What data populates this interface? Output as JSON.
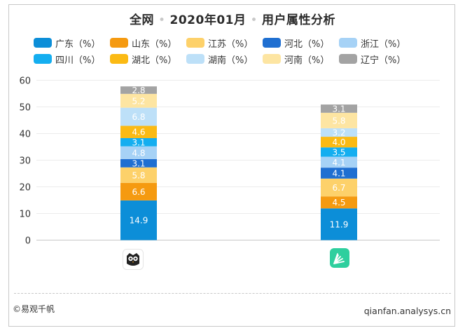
{
  "title": {
    "scope": "全网",
    "period": "2020年01月",
    "topic": "用户属性分析",
    "separator": "•"
  },
  "legend": [
    {
      "label": "广东（%）",
      "color": "#0c8ed8"
    },
    {
      "label": "山东（%）",
      "color": "#f59a10"
    },
    {
      "label": "江苏（%）",
      "color": "#fdd16a"
    },
    {
      "label": "河北（%）",
      "color": "#1f6fd1"
    },
    {
      "label": "浙江（%）",
      "color": "#a6d2f6"
    },
    {
      "label": "四川（%）",
      "color": "#14aef0"
    },
    {
      "label": "湖北（%）",
      "color": "#fbba14"
    },
    {
      "label": "湖南（%）",
      "color": "#bde0f8"
    },
    {
      "label": "河南（%）",
      "color": "#fde5a2"
    },
    {
      "label": "辽宁（%）",
      "color": "#a3a3a3"
    }
  ],
  "chart_data": {
    "type": "bar",
    "stacked": true,
    "categories": [
      "app-owl",
      "app-qianfan"
    ],
    "ylim": [
      0,
      60
    ],
    "yticks": [
      0,
      10,
      20,
      30,
      40,
      50,
      60
    ],
    "grid": true,
    "series": [
      {
        "name": "广东（%）",
        "color": "#0c8ed8",
        "values": [
          14.9,
          11.9
        ]
      },
      {
        "name": "山东（%）",
        "color": "#f59a10",
        "values": [
          6.6,
          4.5
        ]
      },
      {
        "name": "江苏（%）",
        "color": "#fdd16a",
        "values": [
          5.8,
          6.7
        ]
      },
      {
        "name": "河北（%）",
        "color": "#1f6fd1",
        "values": [
          3.1,
          4.1
        ]
      },
      {
        "name": "浙江（%）",
        "color": "#a6d2f6",
        "values": [
          4.8,
          4.1
        ]
      },
      {
        "name": "四川（%）",
        "color": "#14aef0",
        "values": [
          3.1,
          3.5
        ]
      },
      {
        "name": "湖北（%）",
        "color": "#fbba14",
        "values": [
          4.6,
          4.0
        ]
      },
      {
        "name": "湖南（%）",
        "color": "#bde0f8",
        "values": [
          6.8,
          3.2
        ]
      },
      {
        "name": "河南（%）",
        "color": "#fde5a2",
        "values": [
          5.2,
          5.8
        ]
      },
      {
        "name": "辽宁（%）",
        "color": "#a3a3a3",
        "values": [
          2.8,
          3.1
        ]
      }
    ]
  },
  "footer": {
    "copyright": "©易观千帆",
    "source": "qianfan.analysys.cn"
  }
}
